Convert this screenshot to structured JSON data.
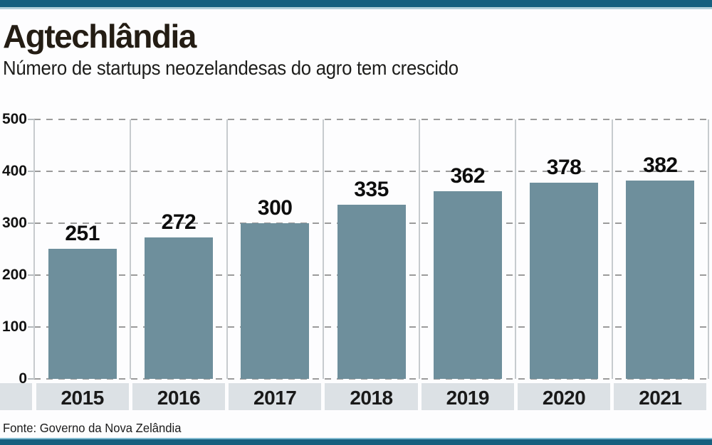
{
  "header": {
    "title": "Agtechlândia",
    "subtitle": "Número de startups neozelandesas do agro tem crescido"
  },
  "footer": {
    "source": "Fonte: Governo da Nova Zelândia"
  },
  "colors": {
    "accent_dark_teal": "#16607f",
    "accent_light_blue_top": "#b2d0da",
    "accent_light_blue_bottom": "#84bcd2",
    "bar_fill": "#6e8f9c",
    "band_background": "#dce1e5",
    "grid_line": "#9b9b9b",
    "axis_line": "#c7cbce",
    "tick_mark": "#b4b9bc",
    "title_text": "#241d14",
    "body_text": "#1d1d1b",
    "value_text": "#0d0d0d"
  },
  "chart_data": {
    "type": "bar",
    "title": "Agtechlândia",
    "subtitle": "Número de startups neozelandesas do agro tem crescido",
    "source": "Fonte: Governo da Nova Zelândia",
    "categories": [
      "2015",
      "2016",
      "2017",
      "2018",
      "2019",
      "2020",
      "2021"
    ],
    "values": [
      251,
      272,
      300,
      335,
      362,
      378,
      382
    ],
    "xlabel": "",
    "ylabel": "",
    "ylim": [
      0,
      500
    ],
    "yticks": [
      0,
      100,
      200,
      300,
      400,
      500
    ],
    "grid": "horizontal-dashed",
    "legend": "none",
    "value_labels": "above-bars",
    "bar_color": "#6e8f9c"
  }
}
